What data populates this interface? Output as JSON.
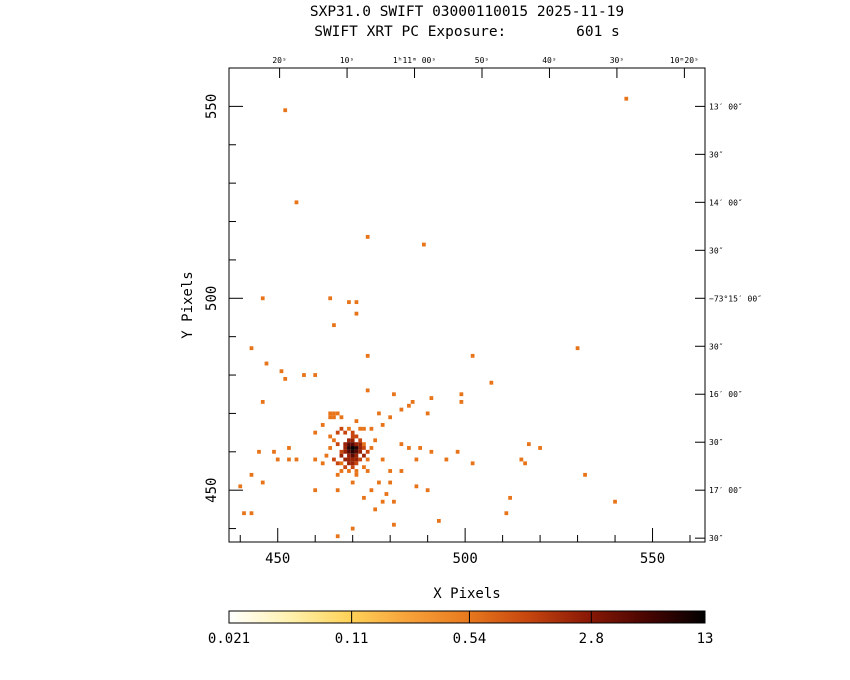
{
  "header": {
    "line1": "SXP31.0 SWIFT 03000110015 2025-11-19",
    "line2": "SWIFT XRT PC Exposure:        601 s"
  },
  "chart_data": {
    "type": "heatmap",
    "xlabel": "X Pixels",
    "ylabel": "Y Pixels",
    "xlim": [
      437,
      564
    ],
    "ylim": [
      436.5,
      560
    ],
    "x_ticks": [
      450,
      500,
      550
    ],
    "y_ticks": [
      450,
      500,
      550
    ],
    "top_ticks": [
      "20ˢ",
      "10ˢ",
      "1ʰ11ᵐ 00ˢ",
      "50ˢ",
      "40ˢ",
      "30ˢ",
      "10ᵐ20ˢ"
    ],
    "top_tick_x": [
      450.5,
      468.5,
      486.5,
      504.5,
      522.5,
      540.5,
      558.5
    ],
    "right_ticks": [
      "13′ 00″",
      "30″",
      "14′ 00″",
      "30″",
      "−73°15′ 00″",
      "30″",
      "16′ 00″",
      "30″",
      "17′ 00″",
      "30″"
    ],
    "right_tick_y": [
      550,
      537.5,
      525,
      512.5,
      500,
      487.5,
      475,
      462.5,
      450,
      437.5
    ],
    "colorbar": {
      "labels": [
        "0.021",
        "0.11",
        "0.54",
        "2.8",
        "13"
      ],
      "min": 0.021,
      "max": 13,
      "scale": "log",
      "colors": [
        "#ffffff",
        "#fff2b0",
        "#ffd35a",
        "#f7a23a",
        "#e87a1e",
        "#c7470f",
        "#8c1a06",
        "#4a0502",
        "#000000"
      ]
    },
    "pixels": [
      [
        543,
        552,
        1
      ],
      [
        452,
        549,
        1
      ],
      [
        455,
        525,
        1
      ],
      [
        474,
        516,
        1
      ],
      [
        489,
        514,
        1
      ],
      [
        446,
        500,
        1
      ],
      [
        464,
        500,
        1
      ],
      [
        469,
        499,
        1
      ],
      [
        471,
        499,
        1
      ],
      [
        465,
        493,
        1
      ],
      [
        471,
        496,
        1
      ],
      [
        443,
        487,
        1
      ],
      [
        447,
        483,
        1
      ],
      [
        451,
        481,
        1
      ],
      [
        452,
        479,
        1
      ],
      [
        457,
        480,
        1
      ],
      [
        460,
        480,
        1
      ],
      [
        474,
        485,
        1
      ],
      [
        502,
        485,
        1
      ],
      [
        530,
        487,
        1
      ],
      [
        507,
        478,
        1
      ],
      [
        474,
        476,
        1
      ],
      [
        446,
        473,
        1
      ],
      [
        481,
        475,
        1
      ],
      [
        485,
        472,
        1
      ],
      [
        486,
        473,
        1
      ],
      [
        491,
        474,
        1
      ],
      [
        499,
        475,
        1
      ],
      [
        499,
        473,
        1
      ],
      [
        477,
        470,
        1
      ],
      [
        483,
        471,
        1
      ],
      [
        480,
        469,
        1
      ],
      [
        490,
        470,
        1
      ],
      [
        464,
        470,
        1
      ],
      [
        465,
        470,
        1
      ],
      [
        466,
        470,
        1
      ],
      [
        464,
        469,
        1
      ],
      [
        465,
        469,
        1
      ],
      [
        467,
        469,
        1
      ],
      [
        471,
        468,
        1
      ],
      [
        473,
        466,
        1
      ],
      [
        462,
        467,
        1
      ],
      [
        475,
        466,
        1
      ],
      [
        478,
        467,
        1
      ],
      [
        460,
        465,
        1
      ],
      [
        464,
        464,
        1
      ],
      [
        473,
        462,
        1
      ],
      [
        476,
        463,
        1
      ],
      [
        483,
        462,
        1
      ],
      [
        485,
        461,
        1
      ],
      [
        488,
        461,
        1
      ],
      [
        491,
        460,
        1
      ],
      [
        487,
        458,
        1
      ],
      [
        478,
        458,
        1
      ],
      [
        453,
        461,
        1
      ],
      [
        449,
        460,
        1
      ],
      [
        450,
        458,
        1
      ],
      [
        453,
        458,
        1
      ],
      [
        455,
        458,
        1
      ],
      [
        460,
        458,
        1
      ],
      [
        462,
        457,
        1
      ],
      [
        463,
        459,
        1
      ],
      [
        498,
        460,
        1
      ],
      [
        502,
        457,
        1
      ],
      [
        515,
        458,
        1
      ],
      [
        516,
        457,
        1
      ],
      [
        517,
        462,
        1
      ],
      [
        520,
        461,
        1
      ],
      [
        495,
        458,
        1
      ],
      [
        480,
        455,
        1
      ],
      [
        483,
        455,
        1
      ],
      [
        477,
        452,
        1
      ],
      [
        480,
        452,
        1
      ],
      [
        487,
        451,
        1
      ],
      [
        490,
        450,
        1
      ],
      [
        532,
        454,
        1
      ],
      [
        446,
        452,
        1
      ],
      [
        443,
        454,
        1
      ],
      [
        460,
        450,
        1
      ],
      [
        466,
        450,
        1
      ],
      [
        475,
        450,
        1
      ],
      [
        479,
        449,
        1
      ],
      [
        478,
        447,
        1
      ],
      [
        481,
        447,
        1
      ],
      [
        473,
        448,
        1
      ],
      [
        476,
        445,
        1
      ],
      [
        512,
        448,
        1
      ],
      [
        540,
        447,
        1
      ],
      [
        441,
        444,
        1
      ],
      [
        443,
        444,
        1
      ],
      [
        511,
        444,
        1
      ],
      [
        493,
        442,
        1
      ],
      [
        481,
        441,
        1
      ],
      [
        470,
        440,
        1
      ],
      [
        466,
        438,
        1
      ],
      [
        440,
        451,
        1
      ],
      [
        445,
        460,
        1
      ],
      [
        465,
        463,
        1
      ],
      [
        466,
        465,
        2
      ],
      [
        467,
        466,
        2
      ],
      [
        468,
        465,
        2
      ],
      [
        466,
        462,
        2
      ],
      [
        467,
        460,
        2
      ],
      [
        468,
        462,
        3
      ],
      [
        469,
        463,
        3
      ],
      [
        470,
        463,
        3
      ],
      [
        471,
        464,
        2
      ],
      [
        472,
        463,
        2
      ],
      [
        473,
        461,
        2
      ],
      [
        474,
        460,
        2
      ],
      [
        472,
        458,
        2
      ],
      [
        470,
        456,
        2
      ],
      [
        468,
        456,
        2
      ],
      [
        466,
        457,
        2
      ],
      [
        465,
        458,
        2
      ],
      [
        467,
        457,
        1
      ],
      [
        469,
        455,
        1
      ],
      [
        471,
        455,
        1
      ],
      [
        473,
        456,
        1
      ],
      [
        474,
        458,
        1
      ],
      [
        475,
        461,
        1
      ],
      [
        472,
        466,
        1
      ],
      [
        470,
        465,
        2
      ],
      [
        469,
        466,
        1
      ],
      [
        464,
        461,
        1
      ],
      [
        467,
        455,
        1
      ],
      [
        471,
        454,
        1
      ],
      [
        466,
        454,
        1
      ],
      [
        470,
        452,
        1
      ],
      [
        474,
        455,
        1
      ],
      [
        468,
        461,
        3
      ],
      [
        469,
        462,
        4
      ],
      [
        470,
        462,
        4
      ],
      [
        471,
        462,
        3
      ],
      [
        468,
        460,
        3
      ],
      [
        469,
        460,
        4
      ],
      [
        470,
        460,
        5
      ],
      [
        471,
        460,
        4
      ],
      [
        472,
        460,
        3
      ],
      [
        469,
        459,
        3
      ],
      [
        470,
        459,
        4
      ],
      [
        471,
        459,
        3
      ],
      [
        468,
        458,
        3
      ],
      [
        469,
        458,
        3
      ],
      [
        470,
        458,
        3
      ],
      [
        471,
        458,
        3
      ],
      [
        469,
        457,
        3
      ],
      [
        470,
        457,
        3
      ],
      [
        471,
        457,
        2
      ],
      [
        472,
        461,
        3
      ],
      [
        467,
        459,
        3
      ],
      [
        473,
        459,
        3
      ],
      [
        470,
        461,
        6
      ],
      [
        471,
        461,
        5
      ],
      [
        469,
        461,
        5
      ],
      [
        470,
        464,
        2
      ],
      [
        472,
        462,
        3
      ]
    ]
  }
}
